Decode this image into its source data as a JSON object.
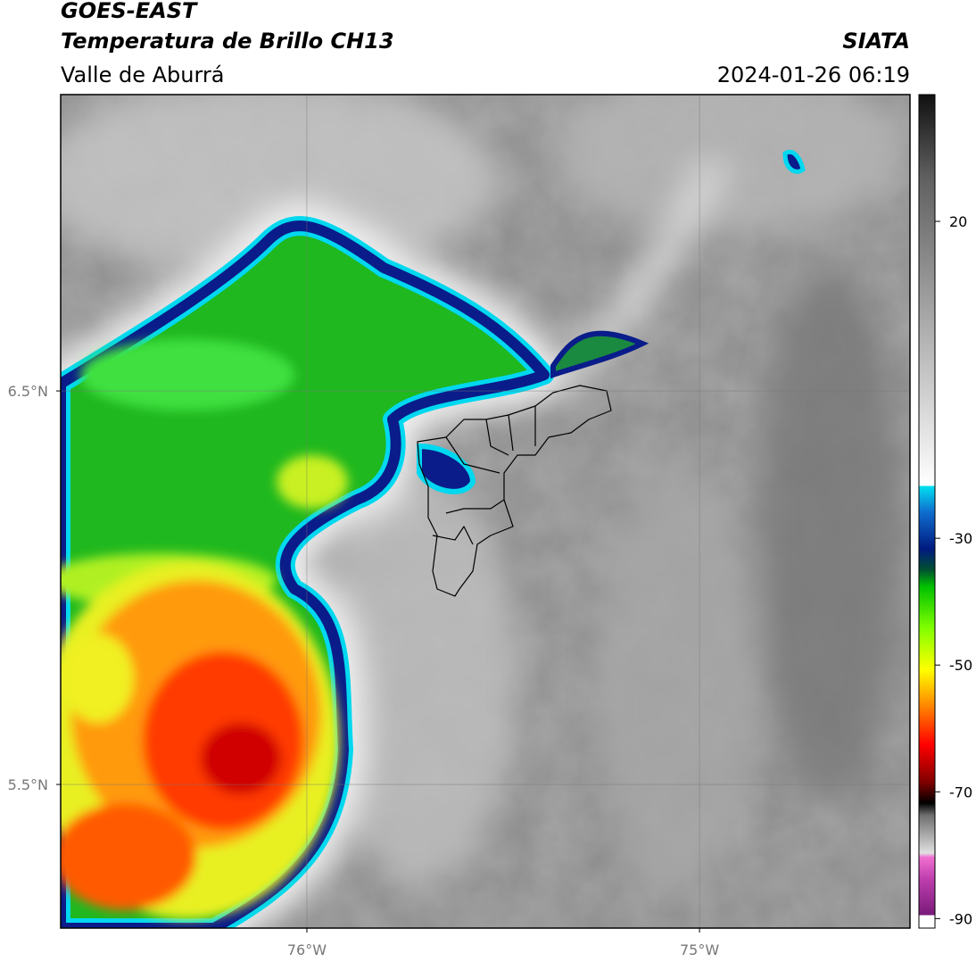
{
  "header": {
    "satellite": "GOES-EAST",
    "product": "Temperatura de Brillo CH13",
    "source": "SIATA",
    "region": "Valle de Aburrá",
    "timestamp": "2024-01-26 06:19"
  },
  "map": {
    "lon_lim": [
      -76.627,
      -74.464
    ],
    "lat_lim": [
      5.135,
      7.253
    ],
    "lon_ticks": [
      {
        "value": -76,
        "label": "76°W"
      },
      {
        "value": -75,
        "label": "75°W"
      }
    ],
    "lat_ticks": [
      {
        "value": 6.5,
        "label": "6.5°N"
      },
      {
        "value": 5.5,
        "label": "5.5°N"
      }
    ],
    "grid": true
  },
  "colorbar": {
    "lim": [
      -91.5,
      40
    ],
    "ticks": [
      20,
      -30,
      -50,
      -70,
      -90
    ]
  }
}
